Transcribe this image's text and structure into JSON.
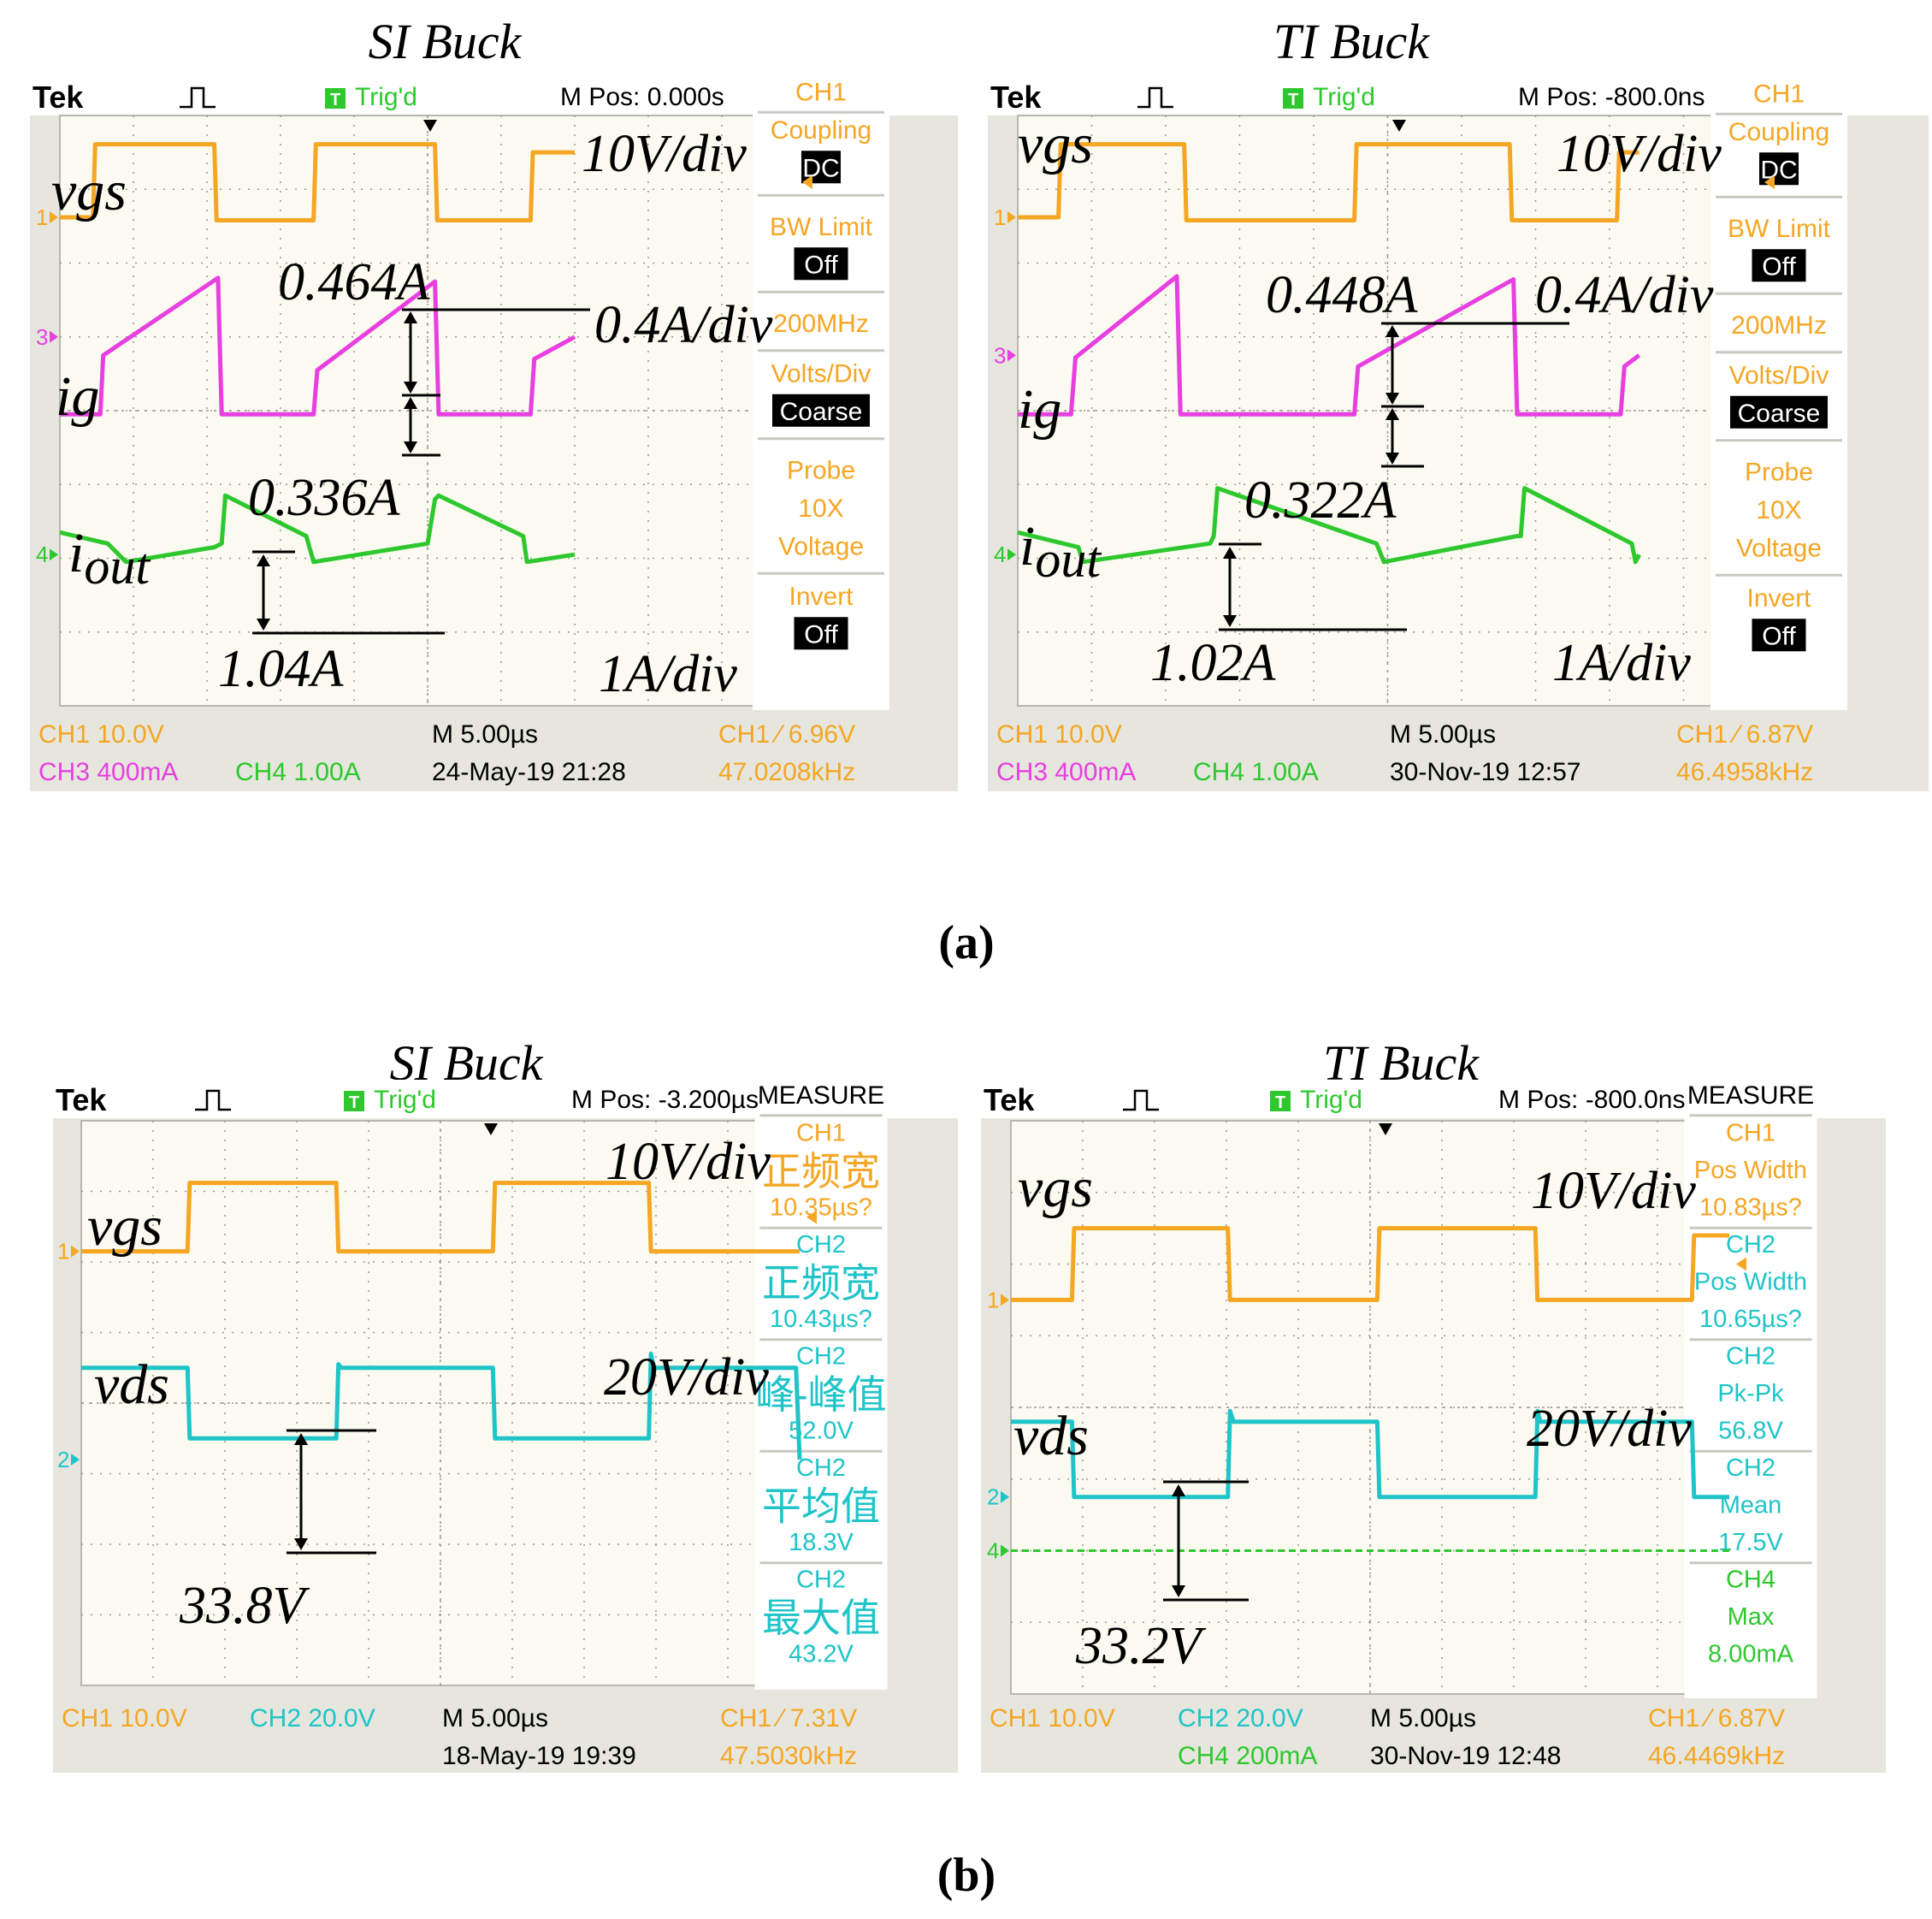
{
  "figure": {
    "label_a": "(a)",
    "label_b": "(b)"
  },
  "colors": {
    "ch1": "#f5a623",
    "ch2": "#1fc4c8",
    "ch3": "#e83fe0",
    "ch4": "#2ec82e",
    "grid_bg": "#fafaf0",
    "frame": "#e6e6de",
    "black": "#000000"
  },
  "chart_data": [
    {
      "type": "line",
      "id": "a_si",
      "title": "SI Buck",
      "header": {
        "brand": "Tek",
        "trig": "Trig'd",
        "mpos": "M Pos: 0.000s"
      },
      "side_panel": [
        {
          "text": "CH1",
          "style": "title"
        },
        {
          "text": "Coupling",
          "style": "label"
        },
        {
          "text": "DC",
          "style": "box"
        },
        {
          "text": "BW Limit",
          "style": "label"
        },
        {
          "text": "Off",
          "style": "box"
        },
        {
          "text": "200MHz",
          "style": "label"
        },
        {
          "text": "Volts/Div",
          "style": "label"
        },
        {
          "text": "Coarse",
          "style": "box"
        },
        {
          "text": "Probe",
          "style": "label"
        },
        {
          "text": "10X",
          "style": "label"
        },
        {
          "text": "Voltage",
          "style": "label"
        },
        {
          "text": "Invert",
          "style": "label"
        },
        {
          "text": "Off",
          "style": "box"
        }
      ],
      "footer": {
        "row1": [
          {
            "text": "CH1  10.0V",
            "color": "ch1"
          },
          {
            "text": "M 5.00µs",
            "color": "black"
          },
          {
            "text": "CH1 ∕ 6.96V",
            "color": "ch1"
          }
        ],
        "row2": [
          {
            "text": "CH3  400mA",
            "color": "ch3"
          },
          {
            "text": "CH4  1.00A",
            "color": "ch4"
          },
          {
            "text": "24-May-19 21:28",
            "color": "black"
          },
          {
            "text": "47.0208kHz",
            "color": "ch1"
          }
        ]
      },
      "x_divisions": 10,
      "y_divisions": 8,
      "time_per_div": "5.00us",
      "series": [
        {
          "name": "vgs",
          "channel": "ch1",
          "scale": "10V/div",
          "ground_marker": "1",
          "t": [
            0,
            0.45,
            0.48,
            2.1,
            2.13,
            3.45,
            3.48,
            5.1,
            5.13,
            6.4,
            6.43,
            7.0
          ],
          "v": [
            6.62,
            6.62,
            7.61,
            7.61,
            6.58,
            6.58,
            7.61,
            7.61,
            6.58,
            6.58,
            7.5,
            7.5
          ]
        },
        {
          "name": "ig",
          "channel": "ch3",
          "scale": "0.4A/div",
          "ground_marker": "3",
          "t": [
            0,
            0.55,
            0.59,
            2.15,
            2.2,
            3.45,
            3.5,
            5.1,
            5.15,
            6.4,
            6.45,
            7.0
          ],
          "v": [
            3.95,
            3.95,
            4.75,
            5.8,
            3.95,
            3.95,
            4.55,
            5.75,
            3.95,
            3.95,
            4.7,
            5.0
          ]
        },
        {
          "name": "iout",
          "channel": "ch4",
          "scale": "1A/div",
          "ground_marker": "4",
          "t": [
            0,
            0.65,
            0.9,
            2.1,
            2.2,
            2.25,
            3.35,
            3.45,
            5.0,
            5.1,
            5.15,
            6.3,
            6.35,
            7.0
          ],
          "v": [
            2.35,
            2.2,
            1.95,
            2.15,
            2.2,
            2.85,
            2.3,
            1.95,
            2.2,
            2.8,
            2.85,
            2.3,
            1.95,
            2.05
          ]
        }
      ],
      "annotations": {
        "vgs_label": "vgs",
        "ig_label": "ig",
        "iout_label_main": "i",
        "iout_label_sub": "out",
        "vgs_scale": "10V/div",
        "ig_scale": "0.4A/div",
        "iout_scale": "1A/div",
        "ig_top": "0.464A",
        "ig_bottom": "0.336A",
        "iout_pp": "1.04A"
      }
    },
    {
      "type": "line",
      "id": "a_ti",
      "title": "TI Buck",
      "header": {
        "brand": "Tek",
        "trig": "Trig'd",
        "mpos": "M Pos: -800.0ns"
      },
      "side_panel": [
        {
          "text": "CH1",
          "style": "title"
        },
        {
          "text": "Coupling",
          "style": "label"
        },
        {
          "text": "DC",
          "style": "box"
        },
        {
          "text": "BW Limit",
          "style": "label"
        },
        {
          "text": "Off",
          "style": "box"
        },
        {
          "text": "200MHz",
          "style": "label"
        },
        {
          "text": "Volts/Div",
          "style": "label"
        },
        {
          "text": "Coarse",
          "style": "box"
        },
        {
          "text": "Probe",
          "style": "label"
        },
        {
          "text": "10X",
          "style": "label"
        },
        {
          "text": "Voltage",
          "style": "label"
        },
        {
          "text": "Invert",
          "style": "label"
        },
        {
          "text": "Off",
          "style": "box"
        }
      ],
      "footer": {
        "row1": [
          {
            "text": "CH1  10.0V",
            "color": "ch1"
          },
          {
            "text": "M 5.00µs",
            "color": "black"
          },
          {
            "text": "CH1 ∕ 6.87V",
            "color": "ch1"
          }
        ],
        "row2": [
          {
            "text": "CH3  400mA",
            "color": "ch3"
          },
          {
            "text": "CH4  1.00A",
            "color": "ch4"
          },
          {
            "text": "30-Nov-19 12:57",
            "color": "black"
          },
          {
            "text": "46.4958kHz",
            "color": "ch1"
          }
        ]
      },
      "x_divisions": 10,
      "y_divisions": 8,
      "time_per_div": "5.00us",
      "series": [
        {
          "name": "vgs",
          "channel": "ch1",
          "scale": "10V/div",
          "ground_marker": "1",
          "t": [
            0,
            0.55,
            0.58,
            2.25,
            2.28,
            4.55,
            4.58,
            6.65,
            6.68,
            8.1,
            8.13,
            8.4
          ],
          "v": [
            6.62,
            6.62,
            7.61,
            7.61,
            6.58,
            6.58,
            7.61,
            7.61,
            6.58,
            6.58,
            7.5,
            7.5
          ]
        },
        {
          "name": "ig",
          "channel": "ch3",
          "scale": "0.4A/div",
          "ground_marker": "3",
          "t": [
            0,
            0.72,
            0.78,
            2.15,
            2.2,
            4.55,
            4.6,
            6.7,
            6.75,
            8.15,
            8.2,
            8.4
          ],
          "v": [
            3.95,
            3.95,
            4.72,
            5.82,
            3.95,
            3.95,
            4.6,
            5.78,
            3.95,
            3.95,
            4.6,
            4.75
          ]
        },
        {
          "name": "iout",
          "channel": "ch4",
          "scale": "1A/div",
          "ground_marker": "4",
          "t": [
            0,
            0.82,
            0.88,
            2.6,
            2.65,
            2.7,
            4.85,
            4.95,
            6.75,
            6.8,
            6.85,
            8.3,
            8.35,
            8.4
          ],
          "v": [
            2.35,
            2.15,
            1.95,
            2.2,
            2.3,
            2.95,
            2.2,
            1.95,
            2.3,
            2.3,
            2.95,
            2.2,
            1.95,
            2.05
          ]
        }
      ],
      "annotations": {
        "vgs_label": "vgs",
        "ig_label": "ig",
        "iout_label_main": "i",
        "iout_label_sub": "out",
        "vgs_scale": "10V/div",
        "ig_scale": "0.4A/div",
        "iout_scale": "1A/div",
        "ig_top": "0.448A",
        "ig_bottom": "0.322A",
        "iout_pp": "1.02A"
      }
    },
    {
      "type": "line",
      "id": "b_si",
      "title": "SI Buck",
      "header": {
        "brand": "Tek",
        "trig": "Trig'd",
        "mpos": "M Pos: -3.200µs"
      },
      "side_panel": [
        {
          "text": "MEASURE",
          "style": "title_black"
        },
        {
          "text": "CH1",
          "style": "m_ch1"
        },
        {
          "text": "正频宽",
          "style": "m_big_ch1"
        },
        {
          "text": "10.35µs?",
          "style": "m_ch1"
        },
        {
          "text": "CH2",
          "style": "m_ch2"
        },
        {
          "text": "正频宽",
          "style": "m_big_ch2"
        },
        {
          "text": "10.43µs?",
          "style": "m_ch2"
        },
        {
          "text": "CH2",
          "style": "m_ch2"
        },
        {
          "text": "峰-峰值",
          "style": "m_big_ch2"
        },
        {
          "text": "52.0V",
          "style": "m_ch2"
        },
        {
          "text": "CH2",
          "style": "m_ch2"
        },
        {
          "text": "平均值",
          "style": "m_big_ch2"
        },
        {
          "text": "18.3V",
          "style": "m_ch2"
        },
        {
          "text": "CH2",
          "style": "m_ch2"
        },
        {
          "text": "最大值",
          "style": "m_big_ch2"
        },
        {
          "text": "43.2V",
          "style": "m_ch2"
        }
      ],
      "footer": {
        "row1": [
          {
            "text": "CH1  10.0V",
            "color": "ch1"
          },
          {
            "text": "CH2  20.0V",
            "color": "ch2"
          },
          {
            "text": "M 5.00µs",
            "color": "black"
          },
          {
            "text": "CH1 ∕ 7.31V",
            "color": "ch1"
          }
        ],
        "row2": [
          {
            "text": "18-May-19 19:39",
            "color": "black"
          },
          {
            "text": "47.5030kHz",
            "color": "ch1"
          }
        ]
      },
      "x_divisions": 10,
      "y_divisions": 8,
      "time_per_div": "5.00us",
      "series": [
        {
          "name": "vgs",
          "channel": "ch1",
          "scale": "10V/div",
          "ground_marker": "1",
          "t": [
            0,
            1.48,
            1.51,
            3.55,
            3.58,
            5.73,
            5.76,
            7.9,
            7.93,
            10.0
          ],
          "v": [
            6.15,
            6.15,
            7.12,
            7.12,
            6.15,
            6.15,
            7.12,
            7.12,
            6.15,
            6.15
          ]
        },
        {
          "name": "vds",
          "channel": "ch2",
          "scale": "20V/div",
          "ground_marker": "2",
          "t": [
            0,
            1.48,
            1.51,
            3.55,
            3.58,
            3.62,
            5.73,
            5.76,
            7.9,
            7.93,
            7.97,
            9.95,
            10.0
          ],
          "v": [
            4.5,
            4.5,
            3.5,
            3.5,
            4.55,
            4.5,
            4.5,
            3.5,
            3.5,
            4.7,
            4.5,
            4.5,
            3.2
          ]
        }
      ],
      "annotations": {
        "vgs_label": "vgs",
        "vds_label": "vds",
        "vgs_scale": "10V/div",
        "vds_scale": "20V/div",
        "vds_step": "33.8V"
      }
    },
    {
      "type": "line",
      "id": "b_ti",
      "title": "TI Buck",
      "header": {
        "brand": "Tek",
        "trig": "Trig'd",
        "mpos": "M Pos: -800.0ns"
      },
      "side_panel": [
        {
          "text": "MEASURE",
          "style": "title_black"
        },
        {
          "text": "CH1",
          "style": "m_ch1"
        },
        {
          "text": "Pos Width",
          "style": "m_ch1"
        },
        {
          "text": "10.83µs?",
          "style": "m_ch1"
        },
        {
          "text": "CH2",
          "style": "m_ch2"
        },
        {
          "text": "Pos Width",
          "style": "m_ch2"
        },
        {
          "text": "10.65µs?",
          "style": "m_ch2"
        },
        {
          "text": "CH2",
          "style": "m_ch2"
        },
        {
          "text": "Pk-Pk",
          "style": "m_ch2"
        },
        {
          "text": "56.8V",
          "style": "m_ch2"
        },
        {
          "text": "CH2",
          "style": "m_ch2"
        },
        {
          "text": "Mean",
          "style": "m_ch2"
        },
        {
          "text": "17.5V",
          "style": "m_ch2"
        },
        {
          "text": "CH4",
          "style": "m_ch4"
        },
        {
          "text": "Max",
          "style": "m_ch4"
        },
        {
          "text": "8.00mA",
          "style": "m_ch4"
        }
      ],
      "footer": {
        "row1": [
          {
            "text": "CH1  10.0V",
            "color": "ch1"
          },
          {
            "text": "CH2  20.0V",
            "color": "ch2"
          },
          {
            "text": "M 5.00µs",
            "color": "black"
          },
          {
            "text": "CH1 ∕ 6.87V",
            "color": "ch1"
          }
        ],
        "row2": [
          {
            "text": "CH4  200mA",
            "color": "ch4"
          },
          {
            "text": "30-Nov-19 12:48",
            "color": "black"
          },
          {
            "text": "46.4469kHz",
            "color": "ch1"
          }
        ]
      },
      "x_divisions": 10,
      "y_divisions": 8,
      "time_per_div": "5.00us",
      "series": [
        {
          "name": "vgs",
          "channel": "ch1",
          "scale": "10V/div",
          "ground_marker": "1",
          "t": [
            0,
            0.85,
            0.88,
            3.02,
            3.05,
            5.1,
            5.13,
            7.3,
            7.33,
            9.48,
            9.51,
            10.0
          ],
          "v": [
            5.5,
            5.5,
            6.5,
            6.5,
            5.5,
            5.5,
            6.5,
            6.5,
            5.5,
            5.5,
            6.4,
            6.4
          ]
        },
        {
          "name": "vds",
          "channel": "ch2",
          "scale": "20V/div",
          "ground_marker": "2",
          "t": [
            0,
            0.85,
            0.88,
            3.02,
            3.05,
            3.1,
            5.1,
            5.13,
            7.3,
            7.33,
            7.37,
            9.48,
            9.51,
            10.0
          ],
          "v": [
            3.8,
            3.8,
            2.75,
            2.75,
            3.95,
            3.8,
            3.8,
            2.75,
            2.75,
            3.95,
            3.8,
            3.8,
            2.75,
            2.75
          ]
        },
        {
          "name": "ch4",
          "channel": "ch4",
          "scale": "200mA",
          "ground_marker": "4",
          "t": [
            0,
            10.0
          ],
          "v": [
            2.0,
            2.0
          ]
        }
      ],
      "annotations": {
        "vgs_label": "vgs",
        "vds_label": "vds",
        "vgs_scale": "10V/div",
        "vds_scale": "20V/div",
        "vds_step": "33.2V"
      }
    }
  ]
}
